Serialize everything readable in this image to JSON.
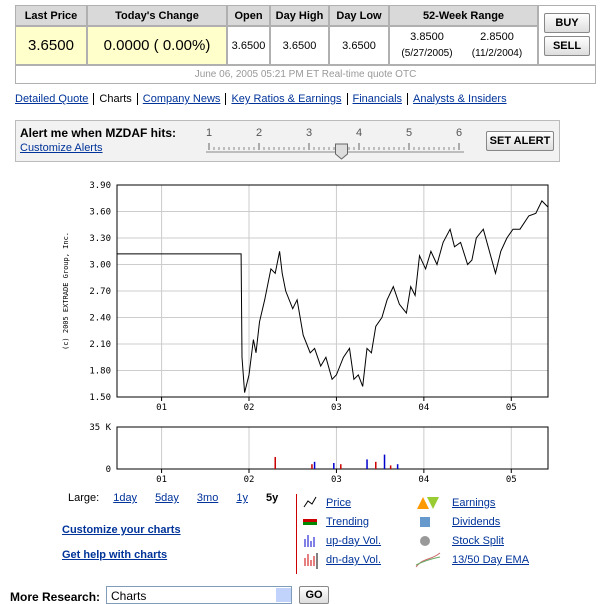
{
  "quote": {
    "headers": [
      "Last Price",
      "Today's Change",
      "Open",
      "Day High",
      "Day Low",
      "52-Week Range"
    ],
    "last_price": "3.6500",
    "change": "0.0000 ( 0.00%)",
    "open": "3.6500",
    "day_high": "3.6500",
    "day_low": "3.6500",
    "range_high": "3.8500",
    "range_high_date": "(5/27/2005)",
    "range_low": "2.8500",
    "range_low_date": "(11/2/2004)",
    "timestamp": "June 06, 2005 05:21 PM ET Real-time quote OTC"
  },
  "buttons": [
    "BUY",
    "SELL"
  ],
  "nav": [
    "Detailed Quote",
    "Charts",
    "Company News",
    "Key Ratios & Earnings",
    "Financials",
    "Analysts & Insiders"
  ],
  "nav_current": 1,
  "alert": {
    "label": "Alert me when MZDAF hits:",
    "link": "Customize Alerts",
    "ticks": [
      1,
      2,
      3,
      4,
      5,
      6
    ],
    "value": 3.65,
    "button": "SET ALERT"
  },
  "price_chart": {
    "type": "line",
    "side_label": "(c) 2005 EXTRADE Group, Inc.",
    "color": "#000000",
    "grid": true,
    "x": [
      0.49,
      1.91,
      1.92,
      1.95,
      2.0,
      2.05,
      2.08,
      2.12,
      2.18,
      2.25,
      2.3,
      2.35,
      2.38,
      2.42,
      2.5,
      2.55,
      2.62,
      2.7,
      2.75,
      2.82,
      2.88,
      2.95,
      3.0,
      3.08,
      3.15,
      3.2,
      3.25,
      3.3,
      3.35,
      3.4,
      3.45,
      3.52,
      3.58,
      3.65,
      3.72,
      3.8,
      3.85,
      3.9,
      3.95,
      4.02,
      4.08,
      4.15,
      4.22,
      4.3,
      4.35,
      4.42,
      4.5,
      4.55,
      4.6,
      4.68,
      4.75,
      4.82,
      4.88,
      4.95,
      5.02,
      5.1,
      5.2,
      5.28,
      5.35,
      5.42
    ],
    "values": [
      3.12,
      3.12,
      1.95,
      1.55,
      1.75,
      2.15,
      2.0,
      2.35,
      2.6,
      2.95,
      2.9,
      3.15,
      2.9,
      2.7,
      2.5,
      2.6,
      2.2,
      2.0,
      2.05,
      1.85,
      1.95,
      1.7,
      1.75,
      1.95,
      2.05,
      1.7,
      1.75,
      1.62,
      2.05,
      2.0,
      2.3,
      2.4,
      2.6,
      2.75,
      2.55,
      2.45,
      2.75,
      2.65,
      3.1,
      2.95,
      3.15,
      3.0,
      3.25,
      3.4,
      3.2,
      3.25,
      3.0,
      3.05,
      3.3,
      3.4,
      3.15,
      2.9,
      3.15,
      3.3,
      3.4,
      3.4,
      3.55,
      3.58,
      3.72,
      3.65
    ],
    "xlim": [
      0.49,
      5.42
    ],
    "xticks": [
      {
        "value": 1,
        "label": "01"
      },
      {
        "value": 2,
        "label": "02"
      },
      {
        "value": 3,
        "label": "03"
      },
      {
        "value": 4,
        "label": "04"
      },
      {
        "value": 5,
        "label": "05"
      }
    ],
    "ylim": [
      1.5,
      3.9
    ],
    "yticks": [
      {
        "value": 1.5,
        "label": "1.50"
      },
      {
        "value": 1.8,
        "label": "1.80"
      },
      {
        "value": 2.1,
        "label": "2.10"
      },
      {
        "value": 2.4,
        "label": "2.40"
      },
      {
        "value": 2.7,
        "label": "2.70"
      },
      {
        "value": 3.0,
        "label": "3.00"
      },
      {
        "value": 3.3,
        "label": "3.30"
      },
      {
        "value": 3.6,
        "label": "3.60"
      },
      {
        "value": 3.9,
        "label": "3.90"
      }
    ]
  },
  "volume_chart": {
    "type": "bar",
    "grid": true,
    "series": [
      {
        "name": "up-day Vol.",
        "color": "#0000cc",
        "x": [
          2.3,
          2.75,
          2.97,
          3.35,
          3.55,
          3.7
        ],
        "values": [
          4,
          6,
          5,
          8,
          12,
          4
        ]
      },
      {
        "name": "dn-day Vol.",
        "color": "#cc0000",
        "x": [
          2.3,
          2.72,
          3.05,
          3.45,
          3.62
        ],
        "values": [
          10,
          4,
          4,
          6,
          3
        ]
      }
    ],
    "xlim": [
      0.49,
      5.42
    ],
    "xticks": [
      {
        "value": 1,
        "label": "01"
      },
      {
        "value": 2,
        "label": "02"
      },
      {
        "value": 3,
        "label": "03"
      },
      {
        "value": 4,
        "label": "04"
      },
      {
        "value": 5,
        "label": "05"
      }
    ],
    "ylim": [
      0,
      35
    ],
    "yticks": [
      0,
      {
        "value": 35,
        "label": "35 K"
      }
    ]
  },
  "range": {
    "label": "Large:",
    "options": [
      "1day",
      "5day",
      "3mo",
      "1y",
      "5y"
    ],
    "selected": 4
  },
  "links": [
    "Customize your charts",
    "Get help with charts"
  ],
  "legend": [
    "Price",
    "Trending",
    "up-day Vol.",
    "dn-day Vol.",
    "Earnings",
    "Dividends",
    "Stock Split",
    "13/50 Day EMA"
  ],
  "research": {
    "label": "More Research:",
    "select": "Charts",
    "button": "GO"
  }
}
